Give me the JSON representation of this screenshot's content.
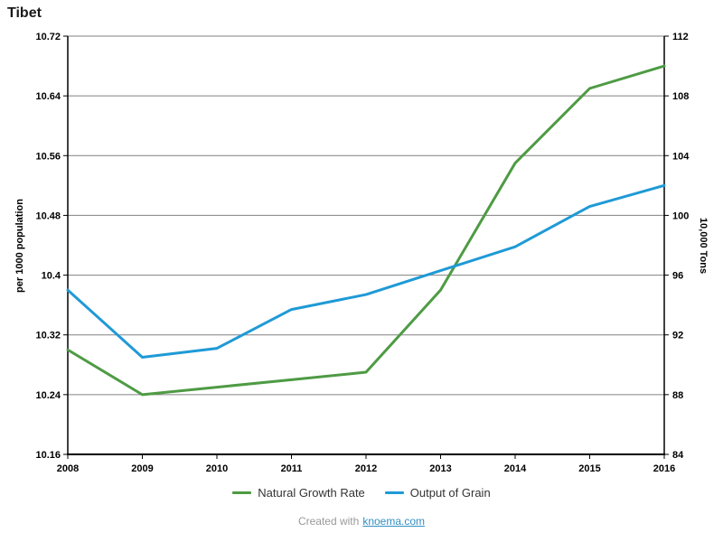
{
  "title": "Tibet",
  "footer": {
    "prefix": "Created with",
    "link_text": "knoema.com"
  },
  "colors": {
    "green_series": "#4e9b44",
    "blue_series": "#1f9ad6",
    "gridline": "#808080",
    "axis": "#000000",
    "tick_label": "#000000",
    "legend_text": "#333333",
    "footer_text": "#999999",
    "link": "#338fc4"
  },
  "chart_data": {
    "type": "line",
    "title": "Tibet",
    "categories": [
      "2008",
      "2009",
      "2010",
      "2011",
      "2012",
      "2013",
      "2014",
      "2015",
      "2016"
    ],
    "series": [
      {
        "name": "Natural Growth Rate",
        "axis": "left",
        "color": "#4e9b44",
        "values": [
          10.3,
          10.24,
          10.25,
          10.26,
          10.27,
          10.38,
          10.55,
          10.65,
          10.68
        ]
      },
      {
        "name": "Output of Grain",
        "axis": "right",
        "color": "#1f9ad6",
        "values": [
          95,
          90.5,
          91.1,
          93.7,
          94.7,
          96.3,
          97.9,
          100.6,
          102
        ]
      }
    ],
    "left_axis": {
      "label": "per 1000 population",
      "min": 10.16,
      "max": 10.72,
      "ticks": [
        "10.72",
        "10.64",
        "10.56",
        "10.48",
        "10.4",
        "10.32",
        "10.24",
        "10.16"
      ]
    },
    "right_axis": {
      "label": "10,000 Tons",
      "min": 84,
      "max": 112,
      "ticks": [
        "112",
        "108",
        "104",
        "100",
        "96",
        "92",
        "88",
        "84"
      ]
    },
    "grid": true,
    "legend_position": "bottom"
  }
}
